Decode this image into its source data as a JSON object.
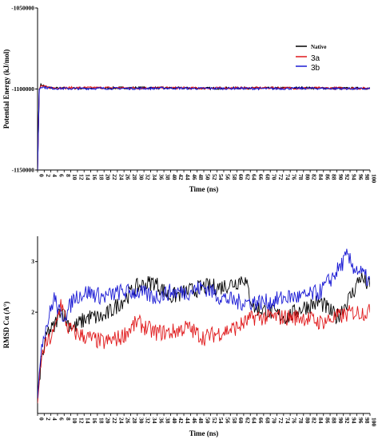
{
  "chart_data": [
    {
      "type": "line",
      "xlabel": "Time (ns)",
      "ylabel": "Potential Energy (kJ/mol)",
      "xlim": [
        0,
        100
      ],
      "ylim": [
        -1150000,
        -1050000
      ],
      "yticks": [
        -1150000,
        -1100000,
        -1050000
      ],
      "ytick_labels": [
        "-1150000",
        "-1100000",
        "-1050000"
      ],
      "xticks": [
        0,
        2,
        4,
        6,
        8,
        10,
        12,
        14,
        16,
        18,
        20,
        22,
        24,
        26,
        28,
        30,
        32,
        34,
        36,
        38,
        40,
        42,
        44,
        46,
        48,
        50,
        52,
        54,
        56,
        58,
        60,
        62,
        64,
        66,
        68,
        70,
        72,
        74,
        76,
        78,
        80,
        82,
        84,
        86,
        88,
        90,
        92,
        94,
        96,
        98,
        100
      ],
      "legend": "right",
      "legend_entries": [
        "Native",
        "3a",
        "3b"
      ],
      "series": [
        {
          "name": "Native",
          "color": "#000000",
          "x": [
            0,
            0.5,
            1,
            2,
            3,
            5,
            10,
            20,
            30,
            40,
            50,
            60,
            70,
            80,
            90,
            100
          ],
          "y": [
            -1150000,
            -1100000,
            -1097500,
            -1098000,
            -1099000,
            -1099500,
            -1099500,
            -1099500,
            -1099200,
            -1099400,
            -1099600,
            -1099400,
            -1099500,
            -1099300,
            -1099600,
            -1099500
          ]
        },
        {
          "name": "3a",
          "color": "#e0191b",
          "x": [
            0,
            0.5,
            1,
            2,
            3,
            5,
            10,
            20,
            30,
            40,
            50,
            60,
            70,
            80,
            90,
            100
          ],
          "y": [
            -1150000,
            -1101000,
            -1098000,
            -1098500,
            -1099000,
            -1099300,
            -1099300,
            -1099200,
            -1099400,
            -1099300,
            -1099500,
            -1099400,
            -1099300,
            -1099500,
            -1099400,
            -1099600
          ]
        },
        {
          "name": "3b",
          "color": "#1a1ad4",
          "x": [
            0,
            0.5,
            1,
            2,
            3,
            5,
            10,
            20,
            30,
            40,
            50,
            60,
            70,
            80,
            90,
            100
          ],
          "y": [
            -1150000,
            -1100500,
            -1098500,
            -1099000,
            -1099300,
            -1099600,
            -1099800,
            -1099600,
            -1099700,
            -1099500,
            -1099700,
            -1099600,
            -1099800,
            -1099600,
            -1099700,
            -1099900
          ]
        }
      ]
    },
    {
      "type": "line",
      "xlabel": "Time (ns)",
      "ylabel": "RMSD Cα (A°)",
      "xlim": [
        0,
        100
      ],
      "ylim": [
        0,
        3.5
      ],
      "yticks": [
        2,
        3
      ],
      "ytick_labels": [
        "2",
        "3"
      ],
      "xticks": [
        0,
        2,
        4,
        6,
        8,
        10,
        12,
        14,
        16,
        18,
        20,
        22,
        24,
        26,
        28,
        30,
        32,
        34,
        36,
        38,
        40,
        42,
        44,
        46,
        48,
        50,
        52,
        54,
        56,
        58,
        60,
        62,
        64,
        66,
        68,
        70,
        72,
        74,
        76,
        78,
        80,
        82,
        84,
        86,
        88,
        90,
        92,
        94,
        96,
        98,
        100
      ],
      "series": [
        {
          "name": "Native",
          "color": "#000000",
          "x": [
            0,
            1,
            2,
            3,
            5,
            7,
            9,
            11,
            15,
            20,
            25,
            30,
            35,
            40,
            45,
            50,
            55,
            60,
            62,
            65,
            70,
            75,
            80,
            85,
            90,
            95,
            97,
            100
          ],
          "y": [
            0.3,
            1.0,
            1.3,
            1.6,
            1.7,
            2.1,
            1.8,
            1.7,
            1.9,
            1.9,
            2.2,
            2.5,
            2.6,
            2.3,
            2.4,
            2.5,
            2.5,
            2.6,
            2.7,
            2.1,
            2.0,
            1.9,
            2.1,
            2.2,
            1.9,
            2.4,
            2.7,
            2.5
          ]
        },
        {
          "name": "3a",
          "color": "#e0191b",
          "x": [
            0,
            1,
            2,
            3,
            5,
            7,
            9,
            11,
            15,
            20,
            25,
            30,
            35,
            40,
            45,
            50,
            55,
            60,
            65,
            70,
            75,
            80,
            85,
            90,
            95,
            100
          ],
          "y": [
            0.2,
            1.0,
            1.3,
            1.4,
            1.6,
            2.2,
            1.7,
            1.6,
            1.5,
            1.4,
            1.5,
            1.8,
            1.6,
            1.6,
            1.7,
            1.5,
            1.6,
            1.7,
            1.9,
            1.9,
            1.9,
            1.9,
            1.8,
            1.9,
            2.0,
            2.0
          ]
        },
        {
          "name": "3b",
          "color": "#1a1ad4",
          "x": [
            0,
            1,
            2,
            3,
            5,
            7,
            9,
            11,
            15,
            20,
            25,
            30,
            35,
            40,
            45,
            50,
            55,
            60,
            65,
            70,
            75,
            80,
            85,
            90,
            93,
            95,
            97,
            100
          ],
          "y": [
            0.3,
            1.3,
            1.6,
            1.8,
            2.3,
            1.9,
            2.0,
            2.3,
            2.4,
            2.3,
            2.4,
            2.4,
            2.3,
            2.4,
            2.4,
            2.5,
            2.3,
            2.2,
            2.2,
            2.2,
            2.3,
            2.3,
            2.4,
            2.8,
            3.1,
            2.9,
            2.8,
            2.6
          ]
        }
      ]
    }
  ]
}
